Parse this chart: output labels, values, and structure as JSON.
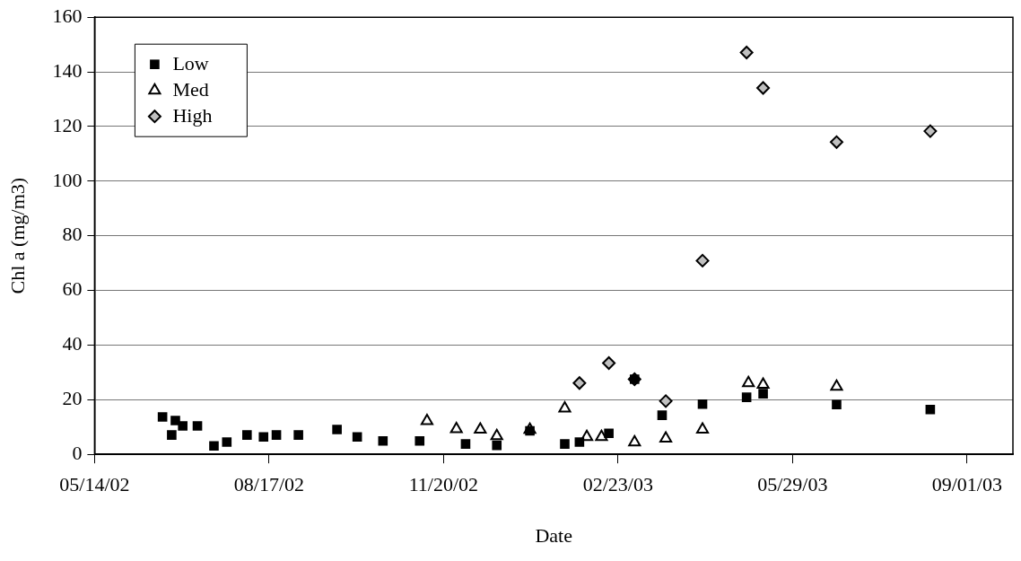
{
  "chart_data": {
    "type": "scatter",
    "xlabel": "Date",
    "ylabel": "Chl a (mg/m3)",
    "legend": "top left",
    "grid": "y",
    "xlim": [
      "2002-05-14",
      "2003-09-26"
    ],
    "xticks": [
      {
        "value": "2002-05-14",
        "label": "05/14/02"
      },
      {
        "value": "2002-08-17",
        "label": "08/17/02"
      },
      {
        "value": "2002-11-20",
        "label": "11/20/02"
      },
      {
        "value": "2003-02-23",
        "label": "02/23/03"
      },
      {
        "value": "2003-05-29",
        "label": "05/29/03"
      },
      {
        "value": "2003-09-01",
        "label": "09/01/03"
      }
    ],
    "ylim": [
      0,
      160
    ],
    "yticks": [
      0,
      20,
      40,
      60,
      80,
      100,
      120,
      140,
      160
    ],
    "series": [
      {
        "name": "Low",
        "color": "#000000",
        "marker": "square",
        "x": [
          "2002-06-20",
          "2002-06-25",
          "2002-06-27",
          "2002-07-01",
          "2002-07-09",
          "2002-07-18",
          "2002-07-25",
          "2002-08-05",
          "2002-08-14",
          "2002-08-21",
          "2002-09-02",
          "2002-09-23",
          "2002-10-04",
          "2002-10-18",
          "2002-11-07",
          "2002-12-02",
          "2002-12-19",
          "2003-01-06",
          "2003-01-25",
          "2003-02-02",
          "2003-02-18",
          "2003-03-04",
          "2003-03-19",
          "2003-04-10",
          "2003-05-04",
          "2003-05-13",
          "2003-06-22",
          "2003-08-12"
        ],
        "values": [
          13.7,
          7.1,
          12.4,
          10.4,
          10.4,
          3.1,
          4.5,
          7.1,
          6.4,
          7.1,
          7.1,
          9.1,
          6.4,
          4.9,
          4.9,
          3.8,
          3.3,
          8.6,
          3.8,
          4.5,
          7.7,
          27.5,
          14.3,
          18.4,
          20.9,
          22.2,
          18.2,
          16.4
        ]
      },
      {
        "name": "Med",
        "color": "#000000",
        "marker": "triangle",
        "x": [
          "2002-11-11",
          "2002-11-27",
          "2002-12-10",
          "2002-12-19",
          "2003-01-06",
          "2003-01-25",
          "2003-02-06",
          "2003-02-14",
          "2003-03-04",
          "2003-03-21",
          "2003-04-10",
          "2003-05-05",
          "2003-05-13",
          "2003-06-22"
        ],
        "values": [
          12.2,
          9.3,
          9.1,
          6.7,
          9,
          16.8,
          6.4,
          6.4,
          4.4,
          5.8,
          9.1,
          26.1,
          25.5,
          24.8
        ]
      },
      {
        "name": "High",
        "color": "#c0c0c0",
        "marker": "diamond",
        "x": [
          "2003-02-02",
          "2003-02-18",
          "2003-03-04",
          "2003-03-21",
          "2003-04-10",
          "2003-05-04",
          "2003-05-13",
          "2003-06-22",
          "2003-08-12"
        ],
        "values": [
          26.1,
          33.4,
          27.5,
          19.5,
          70.9,
          147.1,
          134.1,
          114.3,
          118.3
        ]
      }
    ]
  }
}
